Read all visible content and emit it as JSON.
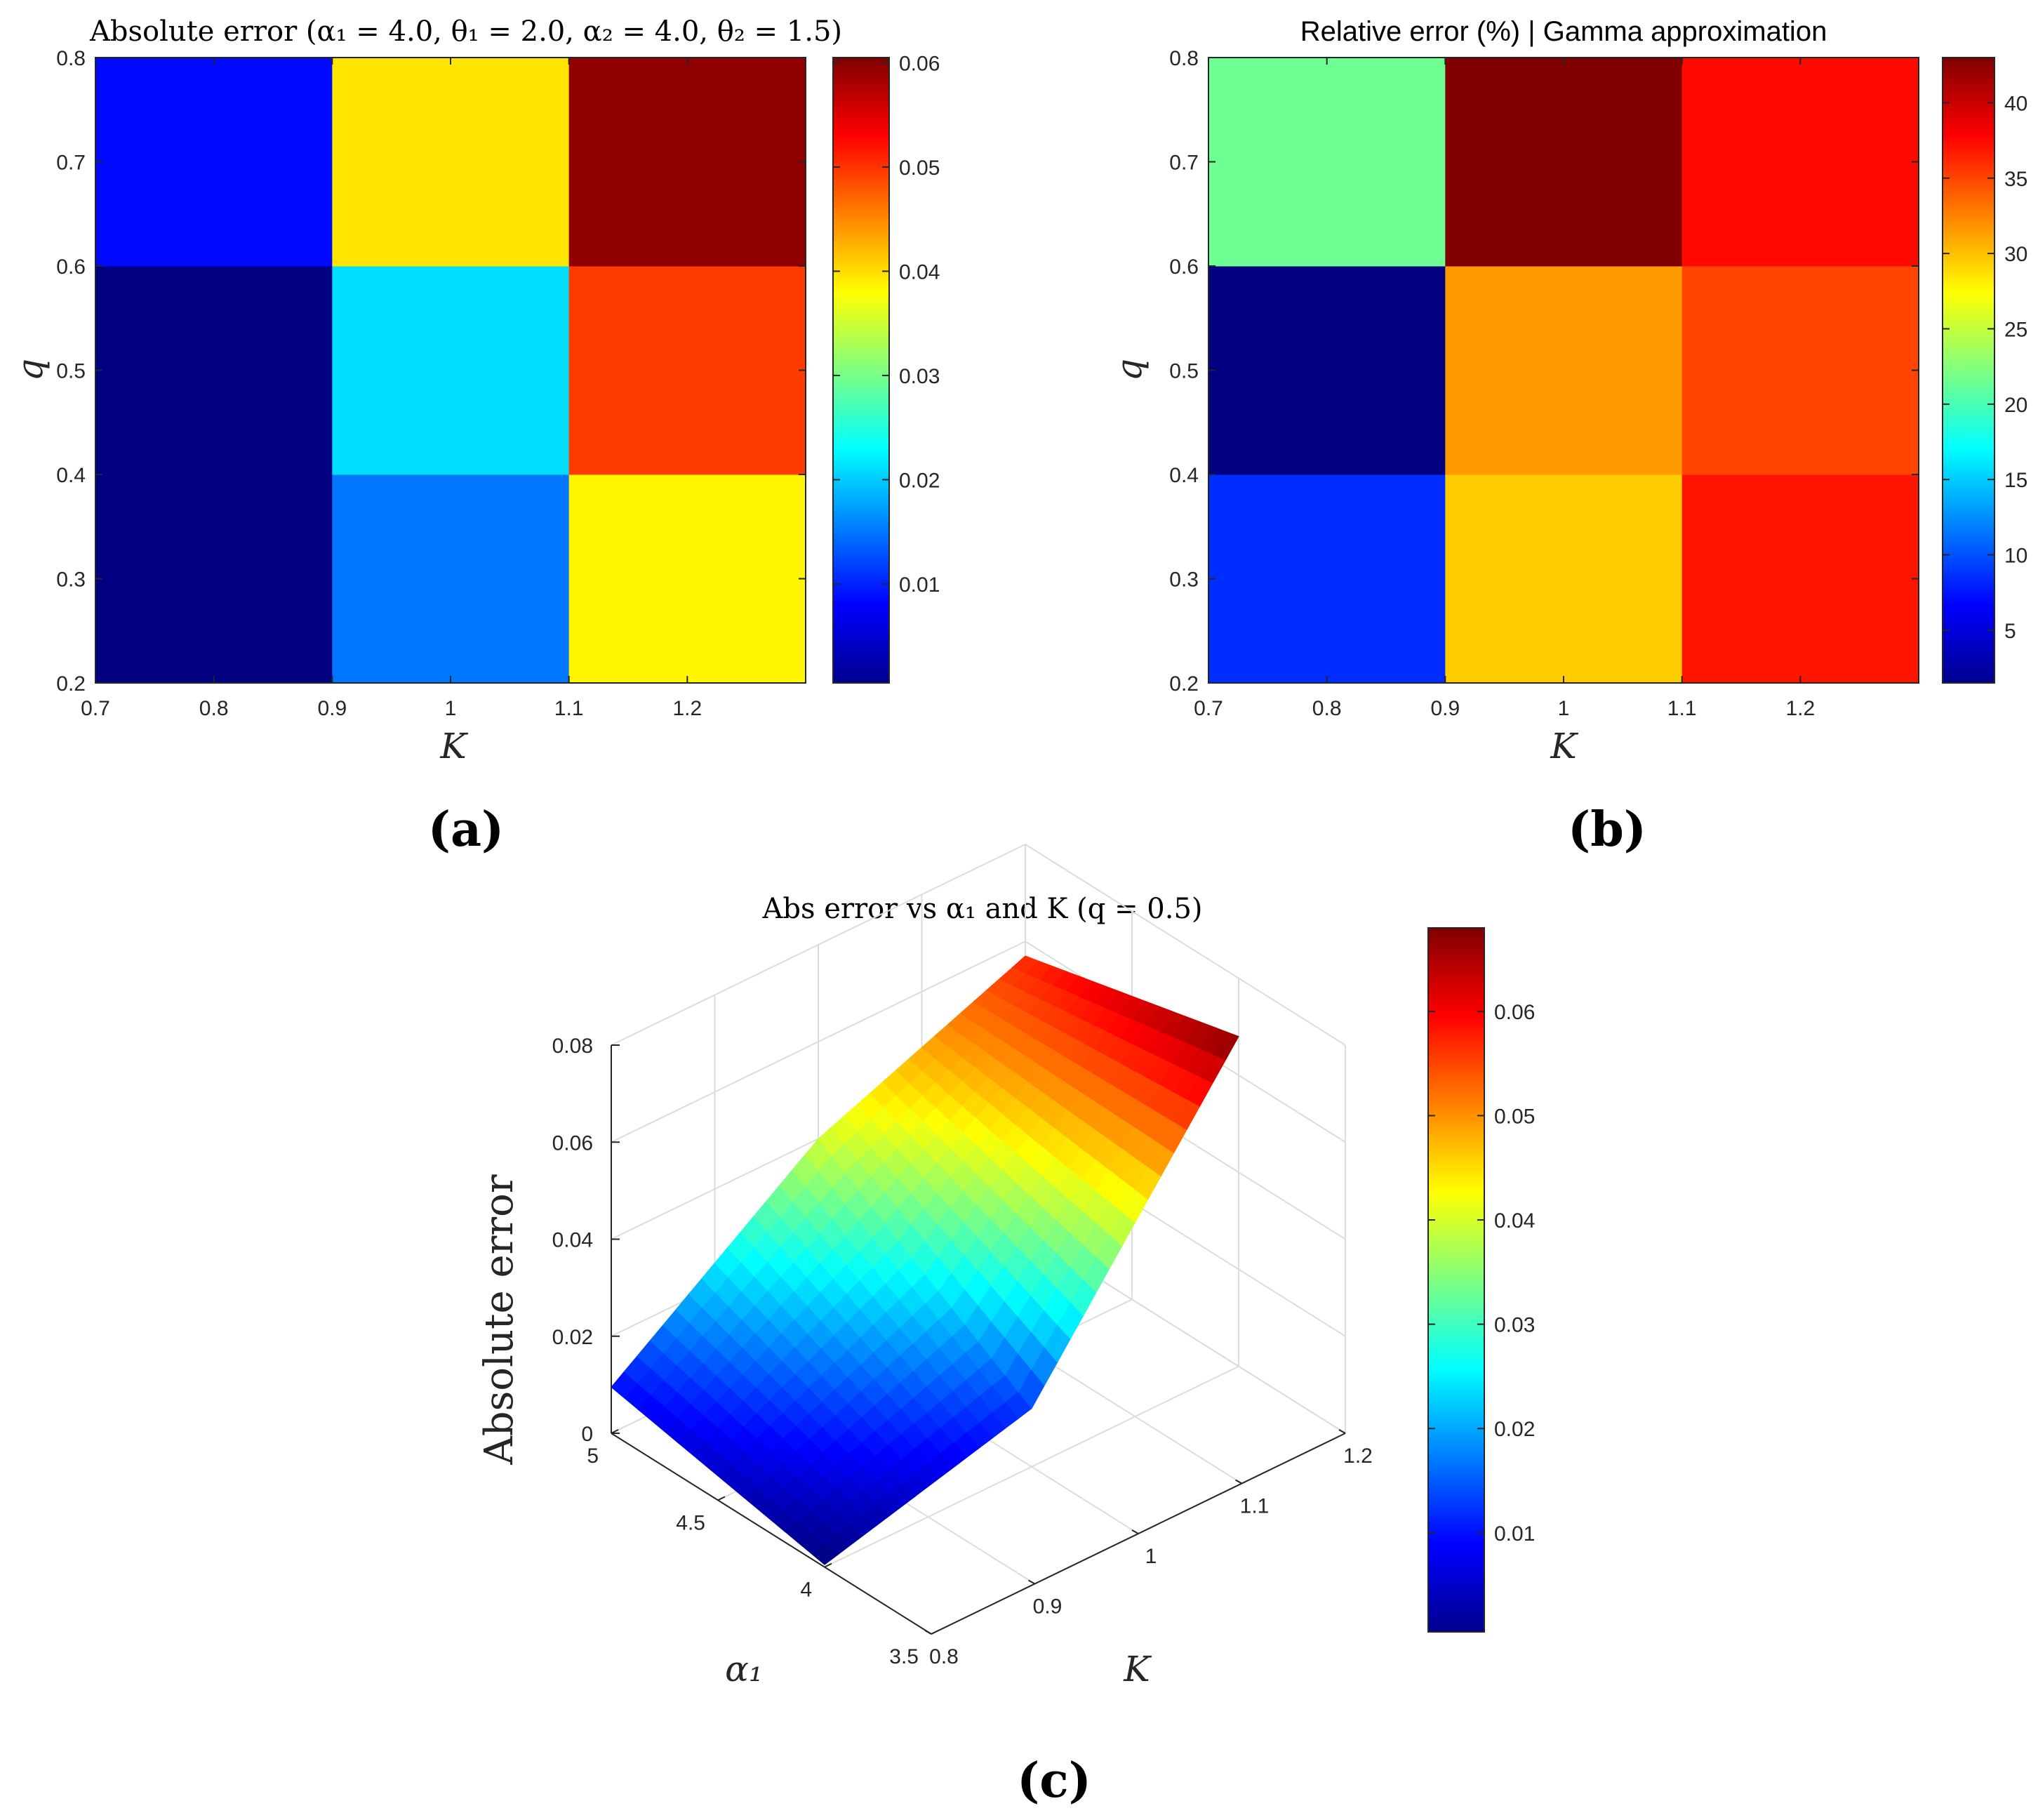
{
  "panel_labels": [
    "(a)",
    "(b)",
    "(c)"
  ],
  "colors": {
    "axis": "#262626",
    "grid": "#dcdcdc",
    "colormap": "jet"
  },
  "chart_data": [
    {
      "type": "heatmap",
      "title": "Absolute error (α₁ = 4.0, θ₁ = 2.0, α₂ = 4.0, θ₂ = 1.5)",
      "xlabel": "K",
      "ylabel": "q",
      "x_edges": [
        0.7,
        0.9,
        1.1,
        1.3
      ],
      "y_edges": [
        0.2,
        0.4,
        0.6,
        0.8
      ],
      "x_tick_labels": [
        "0.7",
        "0.8",
        "0.9",
        "1",
        "1.1",
        "1.2"
      ],
      "y_tick_labels": [
        "0.2",
        "0.3",
        "0.4",
        "0.5",
        "0.6",
        "0.7",
        "0.8"
      ],
      "values": [
        [
          0.0005,
          0.015,
          0.0385
        ],
        [
          0.0005,
          0.021,
          0.0495
        ],
        [
          0.0085,
          0.0395,
          0.0595
        ]
      ],
      "clim": [
        0.0005,
        0.0605
      ],
      "colorbar_ticks": [
        "0.01",
        "0.02",
        "0.03",
        "0.04",
        "0.05",
        "0.06"
      ]
    },
    {
      "type": "heatmap",
      "title": "Relative error (%) | Gamma approximation",
      "xlabel": "K",
      "ylabel": "q",
      "x_edges": [
        0.7,
        0.9,
        1.1,
        1.3
      ],
      "y_edges": [
        0.2,
        0.4,
        0.6,
        0.8
      ],
      "x_tick_labels": [
        "0.7",
        "0.8",
        "0.9",
        "1",
        "1.1",
        "1.2"
      ],
      "y_tick_labels": [
        "0.2",
        "0.3",
        "0.4",
        "0.5",
        "0.6",
        "0.7",
        "0.8"
      ],
      "values": [
        [
          8.5,
          29.5,
          37.0
        ],
        [
          1.5,
          31.5,
          35.0
        ],
        [
          21.5,
          43.0,
          37.5
        ]
      ],
      "clim": [
        1.5,
        43.0
      ],
      "colorbar_ticks": [
        "5",
        "10",
        "15",
        "20",
        "25",
        "30",
        "35",
        "40"
      ]
    },
    {
      "type": "surface",
      "title": "Abs error vs α₁ and K (q = 0.5)",
      "xlabel": "K",
      "ylabel": "α₁",
      "zlabel": "Absolute error",
      "K": [
        0.8,
        1.0,
        1.2
      ],
      "alpha1": [
        4.0,
        5.0
      ],
      "z": [
        [
          0.0005,
          0.012,
          0.068
        ],
        [
          0.0095,
          0.04,
          0.057
        ]
      ],
      "xlim": [
        0.8,
        1.2
      ],
      "ylim": [
        3.5,
        5.0
      ],
      "zlim": [
        0,
        0.08
      ],
      "x_tick_labels": [
        "0.8",
        "0.9",
        "1",
        "1.1",
        "1.2"
      ],
      "y_tick_labels": [
        "3.5",
        "4",
        "4.5",
        "5"
      ],
      "z_tick_labels": [
        "0",
        "0.02",
        "0.04",
        "0.06",
        "0.08"
      ],
      "clim": [
        0.0005,
        0.068
      ],
      "colorbar_ticks": [
        "0.01",
        "0.02",
        "0.03",
        "0.04",
        "0.05",
        "0.06"
      ]
    }
  ]
}
